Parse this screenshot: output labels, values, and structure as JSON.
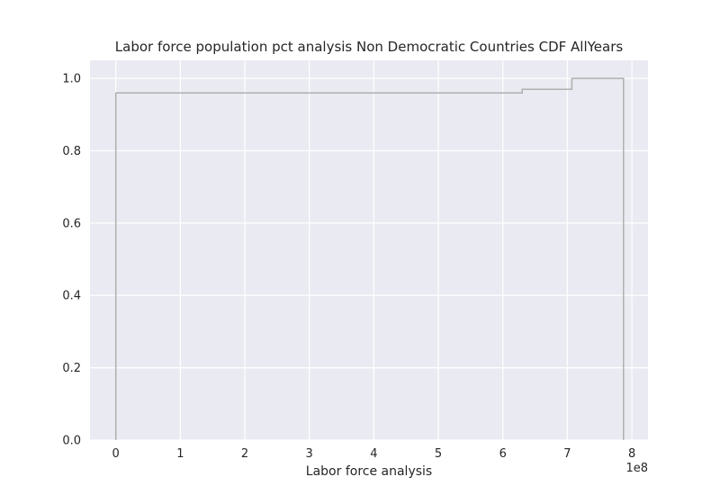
{
  "chart_data": {
    "type": "line",
    "title": "Labor force population pct analysis Non Democratic Countries CDF AllYears",
    "xlabel": "Labor force analysis",
    "ylabel": "",
    "x_offset_label": "1e8",
    "x_ticks": [
      "0",
      "1",
      "2",
      "3",
      "4",
      "5",
      "6",
      "7",
      "8"
    ],
    "y_ticks": [
      "0.0",
      "0.2",
      "0.4",
      "0.6",
      "0.8",
      "1.0"
    ],
    "xlim": [
      -0.4,
      8.25
    ],
    "ylim": [
      0.0,
      1.05
    ],
    "x_scale_note": "x values in units of 1e8",
    "grid": true,
    "series": [
      {
        "line_color": "#b0b0b0",
        "x": [
          0.0,
          0.0,
          6.3,
          6.3,
          7.07,
          7.07,
          7.87,
          7.87
        ],
        "y": [
          0.0,
          0.96,
          0.96,
          0.97,
          0.97,
          1.0,
          1.0,
          0.0
        ]
      }
    ],
    "colors": {
      "plot_background": "#eaeaf2",
      "grid": "#ffffff",
      "text": "#262626"
    }
  }
}
